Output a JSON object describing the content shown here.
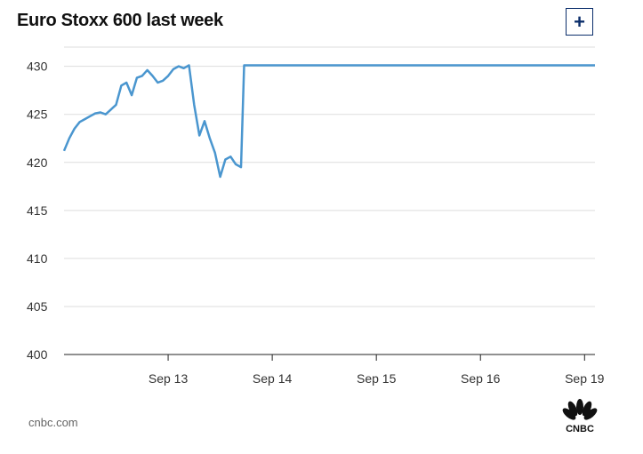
{
  "header": {
    "title": "Euro Stoxx 600 last week",
    "expand_label": "+"
  },
  "footer": {
    "source": "cnbc.com",
    "logo_text": "CNBC",
    "logo_icon": "cnbc-peacock-icon"
  },
  "colors": {
    "line": "#4a96cf",
    "grid": "#dddddd",
    "axis": "#222222",
    "brand": "#0b2e6b"
  },
  "chart_data": {
    "type": "line",
    "title": "Euro Stoxx 600 last week",
    "xlabel": "",
    "ylabel": "",
    "ylim": [
      400,
      432
    ],
    "yticks": [
      400,
      405,
      410,
      415,
      420,
      425,
      430
    ],
    "ytick_labels": [
      "400",
      "405",
      "410",
      "415",
      "420",
      "425",
      "430"
    ],
    "xlim": [
      0,
      5.1
    ],
    "xticks": [
      1,
      2,
      3,
      4,
      5
    ],
    "xtick_labels": [
      "Sep 13",
      "Sep 14",
      "Sep 15",
      "Sep 16",
      "Sep 19"
    ],
    "grid": true,
    "series": [
      {
        "name": "",
        "x": [
          0.0,
          0.05,
          0.1,
          0.15,
          0.2,
          0.25,
          0.3,
          0.35,
          0.4,
          0.45,
          0.5,
          0.55,
          0.6,
          0.65,
          0.7,
          0.75,
          0.8,
          0.85,
          0.9,
          0.95,
          1.0,
          1.05,
          1.1,
          1.15,
          1.2,
          1.25,
          1.3,
          1.35,
          1.4,
          1.45,
          1.5,
          1.55,
          1.6,
          1.65,
          1.7,
          1.73,
          1.75,
          1.8,
          1.85,
          1.9,
          1.95,
          2.0,
          2.05,
          2.1,
          2.15,
          2.2,
          2.25,
          2.3,
          2.35,
          2.4,
          2.45,
          2.5,
          2.55,
          2.6,
          2.65,
          2.7,
          2.75,
          2.8,
          2.85,
          2.9,
          2.95,
          3.0,
          3.05,
          3.1,
          3.15,
          3.2,
          3.25,
          3.3,
          3.35,
          3.4,
          3.45,
          3.5,
          3.55,
          3.6,
          3.65,
          3.7,
          3.75,
          3.8,
          3.85,
          3.9,
          3.95,
          3.98,
          4.0,
          4.05,
          4.1,
          4.15,
          4.2,
          4.25,
          4.3,
          4.35,
          4.4,
          4.45,
          4.5,
          4.55,
          4.6,
          4.65,
          4.7,
          4.75,
          4.8,
          4.85,
          4.9,
          4.95,
          5.0,
          5.05,
          5.1
        ],
        "y": [
          421.2,
          422.5,
          423.5,
          424.2,
          424.5,
          424.8,
          425.1,
          425.2,
          425.0,
          425.5,
          426.0,
          428.0,
          428.3,
          427.0,
          428.8,
          429.0,
          429.6,
          429.0,
          428.3,
          428.5,
          429.0,
          429.7,
          430.0,
          429.8,
          430.1,
          426.0,
          422.8,
          424.3,
          422.5,
          421.0,
          418.5,
          420.3,
          420.6,
          419.8,
          419.5,
          430.1,
          430.1,
          430.1,
          430.1,
          430.1,
          430.1,
          430.1,
          430.1,
          430.1,
          430.1,
          430.1,
          430.1,
          430.1,
          430.1,
          430.1,
          430.1,
          430.1,
          430.1,
          430.1,
          430.1,
          430.1,
          430.1,
          430.1,
          430.1,
          430.1,
          430.1,
          430.1,
          430.1,
          430.1,
          430.1,
          430.1,
          430.1,
          430.1,
          430.1,
          430.1,
          430.1,
          430.1,
          430.1,
          430.1,
          430.1,
          430.1,
          430.1,
          430.1,
          430.1,
          430.1,
          430.1,
          430.1,
          430.1,
          430.1,
          430.1,
          430.1,
          430.1,
          430.1,
          430.1,
          430.1,
          430.1,
          430.1,
          430.1,
          430.1,
          430.1,
          430.1,
          430.1,
          430.1,
          430.1,
          430.1,
          430.1,
          430.1,
          430.1,
          430.1,
          430.1
        ]
      }
    ]
  }
}
